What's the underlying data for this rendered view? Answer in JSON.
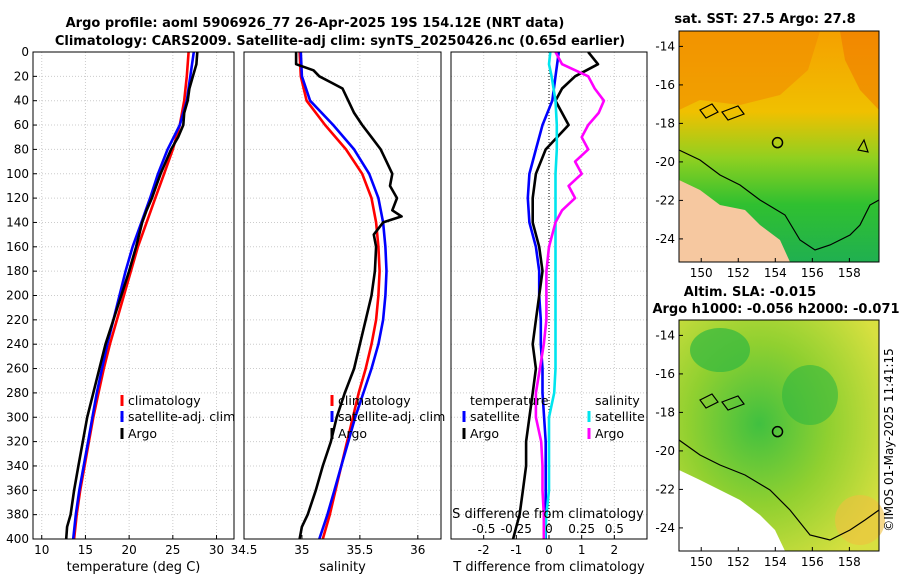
{
  "header": {
    "title_line1": "Argo profile: aoml 5906926_77 26-Apr-2025 19S 154.12E (NRT data)",
    "title_line2": "Climatology: CARS2009. Satellite-adj clim: synTS_20250426.nc (0.65d earlier)"
  },
  "watermark": "©IMOS 01-May-2025 11:41:15",
  "colors": {
    "climatology": "#ff0000",
    "satellite": "#0000ff",
    "argo": "#000000",
    "satellite_sal": "#00e5ee",
    "argo_sal": "#ff00ff"
  },
  "chart_data": [
    {
      "type": "line",
      "id": "temperature",
      "xlabel": "temperature (deg C)",
      "ylabel": "",
      "xlim": [
        9,
        32
      ],
      "ylim": [
        400,
        0
      ],
      "xticks": [
        10,
        15,
        20,
        25,
        30
      ],
      "yticks": [
        0,
        20,
        40,
        60,
        80,
        100,
        120,
        140,
        160,
        180,
        200,
        220,
        240,
        260,
        280,
        300,
        320,
        340,
        360,
        380,
        400
      ],
      "grid": true,
      "legend": {
        "position": "lower-right",
        "entries": [
          "climatology",
          "satellite-adj. clim",
          "Argo"
        ]
      },
      "series": [
        {
          "name": "climatology",
          "color_key": "climatology",
          "depth": [
            0,
            20,
            40,
            60,
            80,
            100,
            120,
            140,
            160,
            180,
            200,
            220,
            240,
            260,
            280,
            300,
            320,
            340,
            360,
            380,
            400
          ],
          "values": [
            26.8,
            26.6,
            26.3,
            25.8,
            25.0,
            24.0,
            23.0,
            22.0,
            21.0,
            20.2,
            19.4,
            18.6,
            17.8,
            17.1,
            16.5,
            15.9,
            15.4,
            14.9,
            14.4,
            14.0,
            13.7
          ]
        },
        {
          "name": "satellite-adj. clim",
          "color_key": "satellite",
          "depth": [
            0,
            20,
            40,
            60,
            80,
            100,
            120,
            140,
            160,
            180,
            200,
            220,
            240,
            260,
            280,
            300,
            320,
            340,
            360,
            380,
            400
          ],
          "values": [
            27.4,
            27.0,
            26.6,
            25.8,
            24.4,
            23.3,
            22.4,
            21.4,
            20.4,
            19.6,
            18.9,
            18.2,
            17.5,
            16.9,
            16.3,
            15.8,
            15.3,
            14.8,
            14.3,
            13.9,
            13.6
          ]
        },
        {
          "name": "Argo",
          "color_key": "argo",
          "depth": [
            0,
            10,
            20,
            30,
            40,
            50,
            60,
            70,
            80,
            90,
            100,
            110,
            120,
            130,
            140,
            160,
            180,
            200,
            220,
            240,
            260,
            280,
            300,
            320,
            340,
            360,
            380,
            390,
            400
          ],
          "values": [
            27.8,
            27.7,
            27.3,
            26.9,
            26.7,
            26.3,
            26.2,
            25.6,
            24.8,
            24.2,
            23.6,
            23.1,
            22.6,
            22.0,
            21.5,
            20.8,
            20.0,
            19.1,
            18.2,
            17.3,
            16.6,
            15.9,
            15.2,
            14.7,
            14.2,
            13.7,
            13.3,
            12.9,
            12.8
          ]
        }
      ]
    },
    {
      "type": "line",
      "id": "salinity",
      "xlabel": "salinity",
      "xlim": [
        34.5,
        36.2
      ],
      "ylim": [
        400,
        0
      ],
      "xticks": [
        34.5,
        35,
        35.5,
        36
      ],
      "xticklabels": [
        "34.5",
        "35",
        "35.5",
        "36"
      ],
      "grid": true,
      "legend": {
        "position": "lower-right",
        "entries": [
          "climatology",
          "satellite-adj. clim",
          "Argo"
        ]
      },
      "series": [
        {
          "name": "climatology",
          "color_key": "climatology",
          "depth": [
            0,
            20,
            40,
            60,
            80,
            100,
            120,
            140,
            160,
            180,
            200,
            220,
            240,
            260,
            280,
            300,
            320,
            340,
            360,
            380,
            400
          ],
          "values": [
            34.98,
            34.99,
            35.04,
            35.2,
            35.38,
            35.52,
            35.6,
            35.64,
            35.66,
            35.67,
            35.66,
            35.64,
            35.6,
            35.55,
            35.49,
            35.44,
            35.39,
            35.34,
            35.29,
            35.24,
            35.18
          ]
        },
        {
          "name": "satellite-adj. clim",
          "color_key": "satellite",
          "depth": [
            0,
            20,
            40,
            60,
            80,
            100,
            120,
            140,
            160,
            180,
            200,
            220,
            240,
            260,
            280,
            300,
            320,
            340,
            360,
            380,
            400
          ],
          "values": [
            34.99,
            35.0,
            35.07,
            35.27,
            35.45,
            35.58,
            35.66,
            35.7,
            35.72,
            35.73,
            35.72,
            35.7,
            35.66,
            35.6,
            35.53,
            35.46,
            35.4,
            35.34,
            35.28,
            35.22,
            35.15
          ]
        },
        {
          "name": "Argo",
          "color_key": "argo",
          "depth": [
            0,
            10,
            15,
            20,
            25,
            30,
            40,
            50,
            60,
            70,
            80,
            90,
            100,
            110,
            120,
            130,
            135,
            140,
            150,
            160,
            180,
            200,
            220,
            240,
            260,
            280,
            300,
            320,
            340,
            360,
            380,
            390,
            400
          ],
          "values": [
            34.95,
            34.95,
            35.1,
            35.15,
            35.25,
            35.35,
            35.4,
            35.45,
            35.52,
            35.6,
            35.68,
            35.73,
            35.78,
            35.76,
            35.82,
            35.78,
            35.86,
            35.7,
            35.62,
            35.64,
            35.63,
            35.6,
            35.55,
            35.5,
            35.45,
            35.37,
            35.3,
            35.25,
            35.18,
            35.12,
            35.05,
            35.0,
            34.98
          ]
        }
      ]
    },
    {
      "type": "line",
      "id": "differences",
      "xlabel": "T difference from climatology",
      "xlabel_top": "S difference from climatology",
      "xlim": [
        -3,
        3
      ],
      "ylim": [
        400,
        0
      ],
      "xticks": [
        -2,
        -1,
        0,
        1,
        2
      ],
      "secondary_xticklabels": [
        "-0.5",
        "-0.25",
        "0",
        "0.25",
        "0.5"
      ],
      "secondary_scale": 4,
      "grid": true,
      "zero_line": true,
      "legend": {
        "temperature_header": "temperature",
        "salinity_header": "salinity",
        "entries": [
          "satellite",
          "Argo",
          "satellite",
          "Argo"
        ]
      },
      "series": [
        {
          "name": "T satellite",
          "color_key": "satellite",
          "depth": [
            0,
            20,
            40,
            60,
            80,
            100,
            120,
            140,
            160,
            180,
            200,
            220,
            240,
            260,
            280,
            300,
            320,
            340,
            360,
            380,
            400
          ],
          "values": [
            0.3,
            0.2,
            0.1,
            -0.2,
            -0.4,
            -0.6,
            -0.65,
            -0.6,
            -0.4,
            -0.3,
            -0.3,
            -0.25,
            -0.25,
            -0.2,
            -0.2,
            -0.15,
            -0.1,
            -0.1,
            -0.1,
            -0.1,
            -0.1
          ]
        },
        {
          "name": "T Argo",
          "color_key": "argo",
          "depth": [
            0,
            10,
            20,
            30,
            40,
            60,
            80,
            100,
            120,
            140,
            160,
            180,
            200,
            220,
            240,
            260,
            280,
            300,
            320,
            340,
            360,
            380,
            390,
            400
          ],
          "values": [
            1.2,
            1.5,
            0.8,
            0.4,
            0.2,
            0.6,
            -0.1,
            -0.4,
            -0.5,
            -0.5,
            -0.3,
            -0.2,
            -0.3,
            -0.4,
            -0.5,
            -0.4,
            -0.5,
            -0.6,
            -0.7,
            -0.7,
            -0.8,
            -0.9,
            -1.0,
            -1.1
          ]
        },
        {
          "name": "S satellite",
          "color_key": "satellite_sal",
          "depth": [
            0,
            10,
            20,
            40,
            60,
            80,
            100,
            120,
            140,
            160,
            180,
            200,
            220,
            240,
            260,
            280,
            300,
            320,
            340,
            360,
            380,
            400
          ],
          "values": [
            0.01,
            0.0,
            0.02,
            0.05,
            0.06,
            0.06,
            0.05,
            0.05,
            0.05,
            0.05,
            0.05,
            0.05,
            0.05,
            0.05,
            0.05,
            0.04,
            0.0,
            0.0,
            0.0,
            0.0,
            -0.02,
            -0.03
          ]
        },
        {
          "name": "S Argo",
          "color_key": "argo_sal",
          "depth": [
            0,
            10,
            20,
            30,
            40,
            50,
            60,
            70,
            80,
            90,
            100,
            110,
            120,
            130,
            140,
            160,
            180,
            200,
            220,
            240,
            260,
            280,
            300,
            320,
            340,
            360,
            380,
            400
          ],
          "values": [
            0.05,
            0.1,
            0.3,
            0.35,
            0.42,
            0.38,
            0.3,
            0.25,
            0.3,
            0.2,
            0.25,
            0.15,
            0.2,
            0.1,
            0.05,
            0.0,
            -0.02,
            -0.02,
            -0.02,
            -0.04,
            -0.07,
            -0.1,
            -0.1,
            -0.06,
            -0.05,
            -0.05,
            -0.04,
            -0.04
          ]
        }
      ]
    }
  ],
  "maps": [
    {
      "title": "sat. SST: 27.5 Argo: 27.8",
      "lon_ticks": [
        150,
        152,
        154,
        156,
        158
      ],
      "lat_ticks": [
        -14,
        -16,
        -18,
        -20,
        -22,
        -24
      ],
      "lon_range": [
        148.8,
        159.6
      ],
      "lat_range": [
        -25.2,
        -13.2
      ],
      "argo_lon": 154.12,
      "argo_lat": -19.0
    },
    {
      "title_line1": "Altim. SLA: -0.015",
      "title_line2": "Argo h1000: -0.056 h2000: -0.071",
      "lon_ticks": [
        150,
        152,
        154,
        156,
        158
      ],
      "lat_ticks": [
        -14,
        -16,
        -18,
        -20,
        -22,
        -24
      ],
      "lon_range": [
        148.8,
        159.6
      ],
      "lat_range": [
        -25.2,
        -13.2
      ],
      "argo_lon": 154.12,
      "argo_lat": -19.0
    }
  ]
}
